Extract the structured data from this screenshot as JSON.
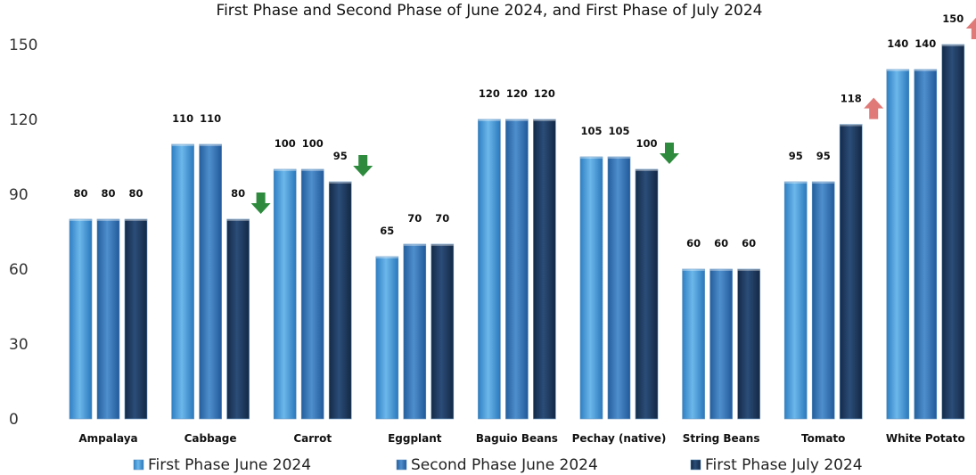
{
  "chart_data": {
    "type": "bar",
    "title": "First Phase and Second Phase of June 2024, and First Phase of July 2024",
    "categories": [
      "Ampalaya",
      "Cabbage",
      "Carrot",
      "Eggplant",
      "Baguio Beans",
      "Pechay (native)",
      "String Beans",
      "Tomato",
      "White Potato"
    ],
    "series": [
      {
        "name": "First Phase June 2024",
        "values": [
          80,
          110,
          100,
          65,
          120,
          105,
          60,
          95,
          140
        ],
        "color": "#3a8fd0"
      },
      {
        "name": "Second Phase June 2024",
        "values": [
          80,
          110,
          100,
          70,
          120,
          105,
          60,
          95,
          140
        ],
        "color": "#2d6fb0"
      },
      {
        "name": "First Phase July 2024",
        "values": [
          80,
          80,
          95,
          70,
          120,
          100,
          60,
          118,
          150
        ],
        "color": "#1b3558"
      }
    ],
    "trend_markers": [
      "none",
      "down",
      "down",
      "none",
      "none",
      "down",
      "none",
      "up",
      "up"
    ],
    "marker_colors": {
      "up": "#e07a78",
      "down": "#2e8b3e"
    },
    "yticks": [
      0,
      30,
      60,
      90,
      120,
      150
    ],
    "ylim": [
      0,
      150
    ],
    "xlabel": "",
    "ylabel": "",
    "grid": false,
    "legend_position": "bottom"
  }
}
